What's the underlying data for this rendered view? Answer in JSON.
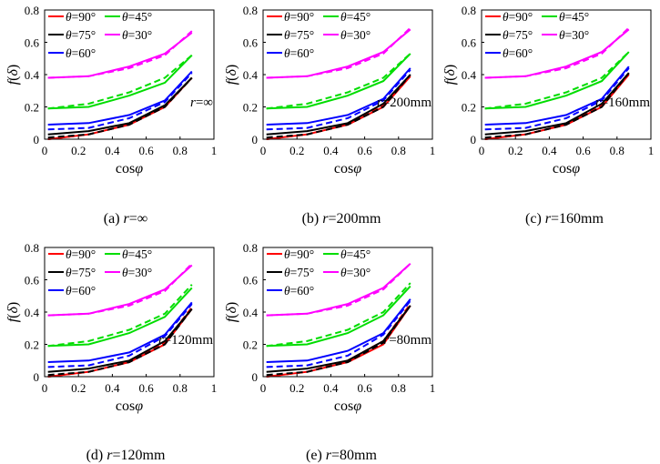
{
  "chart_data": [
    {
      "type": "line",
      "caption": "(a) r=∞",
      "caption_prefix": "(a) ",
      "caption_var": "r",
      "caption_rest": "=∞",
      "annotation_var": "r",
      "annotation_rest": "=∞",
      "xlabel": "cosφ",
      "ylabel": "f(δ)",
      "xlim": [
        0,
        1
      ],
      "ylim": [
        0,
        0.8
      ],
      "x_ticks": [
        "0",
        "0.2",
        "0.4",
        "0.6",
        "0.8",
        "1"
      ],
      "y_ticks": [
        "0",
        "0.2",
        "0.4",
        "0.6",
        "0.8"
      ],
      "x": [
        0.02,
        0.26,
        0.5,
        0.71,
        0.87
      ],
      "series": [
        {
          "name": "θ=90°",
          "color": "#ff0000",
          "solid": [
            0.0,
            0.03,
            0.09,
            0.2,
            0.38
          ],
          "dashed": [
            0.0,
            0.03,
            0.09,
            0.2,
            0.38
          ]
        },
        {
          "name": "θ=75°",
          "color": "#000000",
          "solid": [
            0.03,
            0.05,
            0.1,
            0.21,
            0.38
          ],
          "dashed": [
            0.01,
            0.03,
            0.09,
            0.2,
            0.38
          ]
        },
        {
          "name": "θ=60°",
          "color": "#0000ff",
          "solid": [
            0.09,
            0.1,
            0.15,
            0.24,
            0.42
          ],
          "dashed": [
            0.06,
            0.07,
            0.13,
            0.23,
            0.41
          ]
        },
        {
          "name": "θ=45°",
          "color": "#00dd00",
          "solid": [
            0.19,
            0.2,
            0.27,
            0.35,
            0.52
          ],
          "dashed": [
            0.19,
            0.22,
            0.29,
            0.38,
            0.52
          ]
        },
        {
          "name": "θ=30°",
          "color": "#ff00ff",
          "solid": [
            0.38,
            0.39,
            0.45,
            0.53,
            0.66
          ],
          "dashed": [
            0.38,
            0.39,
            0.44,
            0.52,
            0.67
          ]
        }
      ],
      "legend": [
        {
          "name": "θ=90°",
          "color": "#ff0000"
        },
        {
          "name": "θ=45°",
          "color": "#00dd00"
        },
        {
          "name": "θ=75°",
          "color": "#000000"
        },
        {
          "name": "θ=30°",
          "color": "#ff00ff"
        },
        {
          "name": "θ=60°",
          "color": "#0000ff"
        }
      ]
    },
    {
      "type": "line",
      "caption": "(b) r=200mm",
      "caption_prefix": "(b) ",
      "caption_var": "r",
      "caption_rest": "=200mm",
      "annotation_var": "r",
      "annotation_rest": "=200mm",
      "xlabel": "cosφ",
      "ylabel": "f(δ)",
      "xlim": [
        0,
        1
      ],
      "ylim": [
        0,
        0.8
      ],
      "x_ticks": [
        "0",
        "0.2",
        "0.4",
        "0.6",
        "0.8",
        "1"
      ],
      "y_ticks": [
        "0",
        "0.2",
        "0.4",
        "0.6",
        "0.8"
      ],
      "x": [
        0.02,
        0.26,
        0.5,
        0.71,
        0.87
      ],
      "series": [
        {
          "name": "θ=90°",
          "color": "#ff0000",
          "solid": [
            0.0,
            0.03,
            0.09,
            0.2,
            0.39
          ],
          "dashed": [
            0.0,
            0.03,
            0.09,
            0.21,
            0.4
          ]
        },
        {
          "name": "θ=75°",
          "color": "#000000",
          "solid": [
            0.03,
            0.05,
            0.1,
            0.22,
            0.4
          ],
          "dashed": [
            0.01,
            0.03,
            0.09,
            0.2,
            0.4
          ]
        },
        {
          "name": "θ=60°",
          "color": "#0000ff",
          "solid": [
            0.09,
            0.1,
            0.15,
            0.25,
            0.44
          ],
          "dashed": [
            0.06,
            0.07,
            0.13,
            0.24,
            0.43
          ]
        },
        {
          "name": "θ=45°",
          "color": "#00dd00",
          "solid": [
            0.19,
            0.2,
            0.27,
            0.36,
            0.53
          ],
          "dashed": [
            0.19,
            0.22,
            0.29,
            0.38,
            0.53
          ]
        },
        {
          "name": "θ=30°",
          "color": "#ff00ff",
          "solid": [
            0.38,
            0.39,
            0.45,
            0.54,
            0.68
          ],
          "dashed": [
            0.38,
            0.39,
            0.44,
            0.53,
            0.69
          ]
        }
      ],
      "legend": [
        {
          "name": "θ=90°",
          "color": "#ff0000"
        },
        {
          "name": "θ=45°",
          "color": "#00dd00"
        },
        {
          "name": "θ=75°",
          "color": "#000000"
        },
        {
          "name": "θ=30°",
          "color": "#ff00ff"
        },
        {
          "name": "θ=60°",
          "color": "#0000ff"
        }
      ]
    },
    {
      "type": "line",
      "caption": "(c) r=160mm",
      "caption_prefix": "(c) ",
      "caption_var": "r",
      "caption_rest": "=160mm",
      "annotation_var": "r",
      "annotation_rest": "=160mm",
      "xlabel": "cosφ",
      "ylabel": "f(δ)",
      "xlim": [
        0,
        1
      ],
      "ylim": [
        0,
        0.8
      ],
      "x_ticks": [
        "0",
        "0.2",
        "0.4",
        "0.6",
        "0.8",
        "1"
      ],
      "y_ticks": [
        "0",
        "0.2",
        "0.4",
        "0.6",
        "0.8"
      ],
      "x": [
        0.02,
        0.26,
        0.5,
        0.71,
        0.87
      ],
      "series": [
        {
          "name": "θ=90°",
          "color": "#ff0000",
          "solid": [
            0.0,
            0.03,
            0.09,
            0.2,
            0.4
          ],
          "dashed": [
            0.0,
            0.03,
            0.09,
            0.21,
            0.41
          ]
        },
        {
          "name": "θ=75°",
          "color": "#000000",
          "solid": [
            0.03,
            0.05,
            0.1,
            0.22,
            0.41
          ],
          "dashed": [
            0.01,
            0.03,
            0.09,
            0.2,
            0.41
          ]
        },
        {
          "name": "θ=60°",
          "color": "#0000ff",
          "solid": [
            0.09,
            0.1,
            0.15,
            0.25,
            0.45
          ],
          "dashed": [
            0.06,
            0.07,
            0.13,
            0.24,
            0.44
          ]
        },
        {
          "name": "θ=45°",
          "color": "#00dd00",
          "solid": [
            0.19,
            0.2,
            0.27,
            0.36,
            0.54
          ],
          "dashed": [
            0.19,
            0.22,
            0.29,
            0.38,
            0.54
          ]
        },
        {
          "name": "θ=30°",
          "color": "#ff00ff",
          "solid": [
            0.38,
            0.39,
            0.45,
            0.54,
            0.68
          ],
          "dashed": [
            0.38,
            0.39,
            0.44,
            0.53,
            0.69
          ]
        }
      ],
      "legend": [
        {
          "name": "θ=90°",
          "color": "#ff0000"
        },
        {
          "name": "θ=45°",
          "color": "#00dd00"
        },
        {
          "name": "θ=75°",
          "color": "#000000"
        },
        {
          "name": "θ=30°",
          "color": "#ff00ff"
        },
        {
          "name": "θ=60°",
          "color": "#0000ff"
        }
      ]
    },
    {
      "type": "line",
      "caption": "(d) r=120mm",
      "caption_prefix": "(d) ",
      "caption_var": "r",
      "caption_rest": "=120mm",
      "annotation_var": "r",
      "annotation_rest": "=120mm",
      "xlabel": "cosφ",
      "ylabel": "f(δ)",
      "xlim": [
        0,
        1
      ],
      "ylim": [
        0,
        0.8
      ],
      "x_ticks": [
        "0",
        "0.2",
        "0.4",
        "0.6",
        "0.8",
        "1"
      ],
      "y_ticks": [
        "0",
        "0.2",
        "0.4",
        "0.6",
        "0.8"
      ],
      "x": [
        0.02,
        0.26,
        0.5,
        0.71,
        0.87
      ],
      "series": [
        {
          "name": "θ=90°",
          "color": "#ff0000",
          "solid": [
            0.0,
            0.03,
            0.09,
            0.2,
            0.42
          ],
          "dashed": [
            0.0,
            0.03,
            0.09,
            0.21,
            0.43
          ]
        },
        {
          "name": "θ=75°",
          "color": "#000000",
          "solid": [
            0.03,
            0.05,
            0.1,
            0.22,
            0.42
          ],
          "dashed": [
            0.01,
            0.03,
            0.09,
            0.2,
            0.42
          ]
        },
        {
          "name": "θ=60°",
          "color": "#0000ff",
          "solid": [
            0.09,
            0.1,
            0.15,
            0.26,
            0.46
          ],
          "dashed": [
            0.06,
            0.07,
            0.13,
            0.25,
            0.45
          ]
        },
        {
          "name": "θ=45°",
          "color": "#00dd00",
          "solid": [
            0.19,
            0.2,
            0.27,
            0.37,
            0.55
          ],
          "dashed": [
            0.19,
            0.22,
            0.29,
            0.39,
            0.57
          ]
        },
        {
          "name": "θ=30°",
          "color": "#ff00ff",
          "solid": [
            0.38,
            0.39,
            0.45,
            0.54,
            0.69
          ],
          "dashed": [
            0.38,
            0.39,
            0.44,
            0.53,
            0.7
          ]
        }
      ],
      "legend": [
        {
          "name": "θ=90°",
          "color": "#ff0000"
        },
        {
          "name": "θ=45°",
          "color": "#00dd00"
        },
        {
          "name": "θ=75°",
          "color": "#000000"
        },
        {
          "name": "θ=30°",
          "color": "#ff00ff"
        },
        {
          "name": "θ=60°",
          "color": "#0000ff"
        }
      ]
    },
    {
      "type": "line",
      "caption": "(e) r=80mm",
      "caption_prefix": "(e) ",
      "caption_var": "r",
      "caption_rest": "=80mm",
      "annotation_var": "r",
      "annotation_rest": "=80mm",
      "xlabel": "cosφ",
      "ylabel": "f(δ)",
      "xlim": [
        0,
        1
      ],
      "ylim": [
        0,
        0.8
      ],
      "x_ticks": [
        "0",
        "0.2",
        "0.4",
        "0.6",
        "0.8",
        "1"
      ],
      "y_ticks": [
        "0",
        "0.2",
        "0.4",
        "0.6",
        "0.8"
      ],
      "x": [
        0.02,
        0.26,
        0.5,
        0.71,
        0.87
      ],
      "series": [
        {
          "name": "θ=90°",
          "color": "#ff0000",
          "solid": [
            0.0,
            0.03,
            0.09,
            0.2,
            0.44
          ],
          "dashed": [
            0.0,
            0.03,
            0.1,
            0.22,
            0.45
          ]
        },
        {
          "name": "θ=75°",
          "color": "#000000",
          "solid": [
            0.03,
            0.05,
            0.1,
            0.22,
            0.44
          ],
          "dashed": [
            0.01,
            0.03,
            0.09,
            0.21,
            0.44
          ]
        },
        {
          "name": "θ=60°",
          "color": "#0000ff",
          "solid": [
            0.09,
            0.1,
            0.16,
            0.27,
            0.48
          ],
          "dashed": [
            0.06,
            0.07,
            0.13,
            0.26,
            0.47
          ]
        },
        {
          "name": "θ=45°",
          "color": "#00dd00",
          "solid": [
            0.19,
            0.2,
            0.27,
            0.38,
            0.56
          ],
          "dashed": [
            0.19,
            0.22,
            0.29,
            0.4,
            0.58
          ]
        },
        {
          "name": "θ=30°",
          "color": "#ff00ff",
          "solid": [
            0.38,
            0.39,
            0.45,
            0.55,
            0.7
          ],
          "dashed": [
            0.38,
            0.39,
            0.44,
            0.54,
            0.7
          ]
        }
      ],
      "legend": [
        {
          "name": "θ=90°",
          "color": "#ff0000"
        },
        {
          "name": "θ=45°",
          "color": "#00dd00"
        },
        {
          "name": "θ=75°",
          "color": "#000000"
        },
        {
          "name": "θ=30°",
          "color": "#ff00ff"
        },
        {
          "name": "θ=60°",
          "color": "#0000ff"
        }
      ]
    }
  ]
}
